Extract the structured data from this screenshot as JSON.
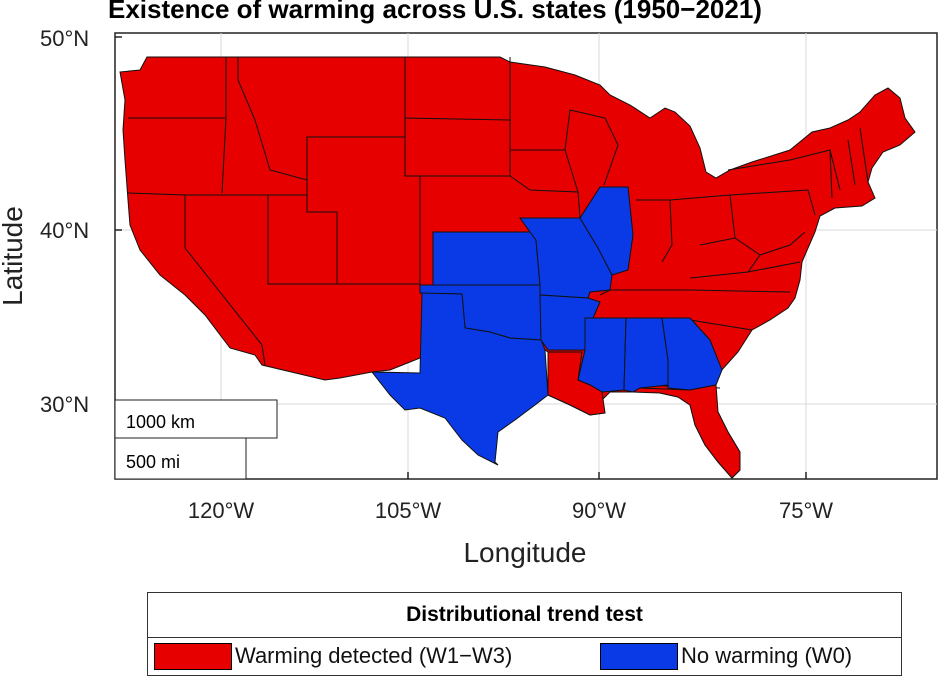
{
  "title": "Existence of warming across U.S. states (1950−2021)",
  "axes": {
    "xlabel": "Longitude",
    "ylabel": "Latitude",
    "x_ticks": [
      "120°W",
      "105°W",
      "90°W",
      "75°W"
    ],
    "y_ticks": [
      "50°N",
      "40°N",
      "30°N"
    ],
    "grid": true
  },
  "scale_bar": {
    "km_label": "1000 km",
    "mi_label": "500 mi"
  },
  "legend": {
    "title": "Distributional trend test",
    "items": [
      {
        "label": "Warming detected (W1−W3)",
        "color": "#e60000"
      },
      {
        "label": "No warming (W0)",
        "color": "#0a3ae6"
      }
    ]
  },
  "map": {
    "warming_color": "#e60000",
    "no_warming_color": "#0a3ae6",
    "no_warming_states": [
      "Kansas",
      "Oklahoma",
      "Texas",
      "Missouri",
      "Arkansas",
      "Illinois",
      "Mississippi",
      "Alabama",
      "Georgia"
    ]
  }
}
